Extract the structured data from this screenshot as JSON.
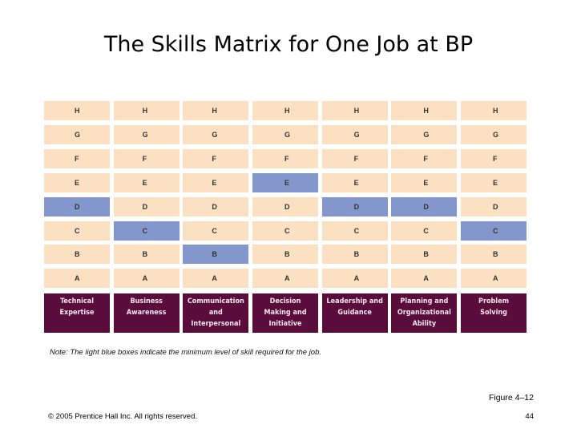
{
  "title": "The Skills Matrix for One Job at BP",
  "levels": [
    "H",
    "G",
    "F",
    "E",
    "D",
    "C",
    "B",
    "A"
  ],
  "columns": [
    {
      "name": "Technical\nExpertise",
      "required": "D"
    },
    {
      "name": "Business\nAwareness",
      "required": "C"
    },
    {
      "name": "Communication\nand\nInterpersonal",
      "required": "B"
    },
    {
      "name": "Decision\nMaking and\nInitiative",
      "required": "E"
    },
    {
      "name": "Leadership and\nGuidance",
      "required": "D"
    },
    {
      "name": "Planning and\nOrganizational\nAbility",
      "required": "D"
    },
    {
      "name": "Problem\nSolving",
      "required": "C"
    }
  ],
  "colors": {
    "cell": "#fce0c2",
    "required": "#8497cc",
    "header": "#5a0d3b"
  },
  "note": "Note: The light blue boxes indicate the minimum level of skill required for the job.",
  "figure_label": "Figure 4–12",
  "copyright": "© 2005 Prentice Hall Inc. All rights reserved.",
  "page_number": "44"
}
